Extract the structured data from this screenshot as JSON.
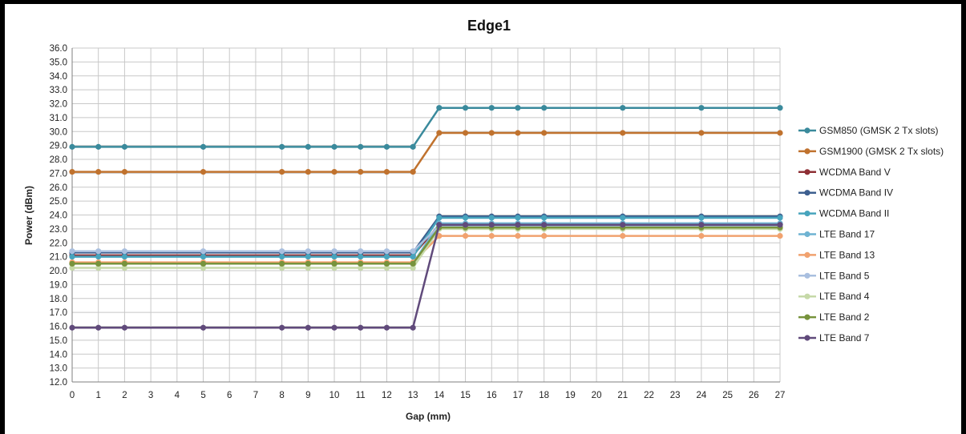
{
  "chart_data": {
    "type": "line",
    "title": "Edge1",
    "xlabel": "Gap (mm)",
    "ylabel": "Power (dBm)",
    "xlim": [
      0,
      27
    ],
    "ylim": [
      12.0,
      36.0
    ],
    "ytick_step": 1.0,
    "x_tick_labels": [
      "0",
      "1",
      "2",
      "3",
      "4",
      "5",
      "6",
      "7",
      "8",
      "9",
      "10",
      "11",
      "12",
      "13",
      "14",
      "15",
      "16",
      "17",
      "18",
      "19",
      "20",
      "21",
      "22",
      "23",
      "24",
      "25",
      "26",
      "27"
    ],
    "y_tick_labels": [
      "12.0",
      "13.0",
      "14.0",
      "15.0",
      "16.0",
      "17.0",
      "18.0",
      "19.0",
      "20.0",
      "21.0",
      "22.0",
      "23.0",
      "24.0",
      "25.0",
      "26.0",
      "27.0",
      "28.0",
      "29.0",
      "30.0",
      "31.0",
      "32.0",
      "33.0",
      "34.0",
      "35.0",
      "36.0"
    ],
    "grid": true,
    "legend_position": "right",
    "x": [
      0,
      1,
      2,
      5,
      8,
      9,
      10,
      11,
      12,
      13,
      14,
      15,
      16,
      17,
      18,
      21,
      24,
      27
    ],
    "series": [
      {
        "name": "GSM850  (GMSK 2 Tx slots)",
        "color": "#3a8a9c",
        "values": [
          28.9,
          28.9,
          28.9,
          28.9,
          28.9,
          28.9,
          28.9,
          28.9,
          28.9,
          28.9,
          31.7,
          31.7,
          31.7,
          31.7,
          31.7,
          31.7,
          31.7,
          31.7
        ]
      },
      {
        "name": "GSM1900 (GMSK 2 Tx slots)",
        "color": "#c0722e",
        "values": [
          27.1,
          27.1,
          27.1,
          27.1,
          27.1,
          27.1,
          27.1,
          27.1,
          27.1,
          27.1,
          29.9,
          29.9,
          29.9,
          29.9,
          29.9,
          29.9,
          29.9,
          29.9
        ]
      },
      {
        "name": "WCDMA Band V",
        "color": "#8e2f35",
        "values": [
          21.1,
          21.1,
          21.1,
          21.1,
          21.1,
          21.1,
          21.1,
          21.1,
          21.1,
          21.1,
          23.3,
          23.3,
          23.3,
          23.3,
          23.3,
          23.3,
          23.3,
          23.3
        ]
      },
      {
        "name": "WCDMA Band IV",
        "color": "#3d5f8f",
        "values": [
          21.3,
          21.3,
          21.3,
          21.3,
          21.3,
          21.3,
          21.3,
          21.3,
          21.3,
          21.3,
          23.9,
          23.9,
          23.9,
          23.9,
          23.9,
          23.9,
          23.9,
          23.9
        ]
      },
      {
        "name": "WCDMA Band II",
        "color": "#47a4bd",
        "values": [
          21.0,
          21.0,
          21.0,
          21.0,
          21.0,
          21.0,
          21.0,
          21.0,
          21.0,
          21.0,
          23.8,
          23.8,
          23.8,
          23.8,
          23.8,
          23.8,
          23.8,
          23.8
        ]
      },
      {
        "name": "LTE Band 17",
        "color": "#6fb3d2",
        "values": [
          20.5,
          20.5,
          20.5,
          20.5,
          20.5,
          20.5,
          20.5,
          20.5,
          20.5,
          20.5,
          23.4,
          23.4,
          23.4,
          23.4,
          23.4,
          23.4,
          23.4,
          23.4
        ]
      },
      {
        "name": "LTE Band 13",
        "color": "#f1a26f",
        "values": [
          20.6,
          20.6,
          20.6,
          20.6,
          20.6,
          20.6,
          20.6,
          20.6,
          20.6,
          20.6,
          22.5,
          22.5,
          22.5,
          22.5,
          22.5,
          22.5,
          22.5,
          22.5
        ]
      },
      {
        "name": "LTE Band 5",
        "color": "#a9bfdf",
        "values": [
          21.4,
          21.4,
          21.4,
          21.4,
          21.4,
          21.4,
          21.4,
          21.4,
          21.4,
          21.4,
          23.2,
          23.2,
          23.2,
          23.2,
          23.2,
          23.2,
          23.2,
          23.2
        ]
      },
      {
        "name": "LTE Band 4",
        "color": "#c6d9a8",
        "values": [
          20.2,
          20.2,
          20.2,
          20.2,
          20.2,
          20.2,
          20.2,
          20.2,
          20.2,
          20.2,
          23.0,
          23.0,
          23.0,
          23.0,
          23.0,
          23.0,
          23.0,
          23.0
        ]
      },
      {
        "name": "LTE Band 2",
        "color": "#77933c",
        "values": [
          20.5,
          20.5,
          20.5,
          20.5,
          20.5,
          20.5,
          20.5,
          20.5,
          20.5,
          20.5,
          23.1,
          23.1,
          23.1,
          23.1,
          23.1,
          23.1,
          23.1,
          23.1
        ]
      },
      {
        "name": "LTE Band 7",
        "color": "#604a7b",
        "values": [
          15.9,
          15.9,
          15.9,
          15.9,
          15.9,
          15.9,
          15.9,
          15.9,
          15.9,
          15.9,
          23.3,
          23.3,
          23.3,
          23.3,
          23.3,
          23.3,
          23.3,
          23.3
        ]
      }
    ]
  }
}
